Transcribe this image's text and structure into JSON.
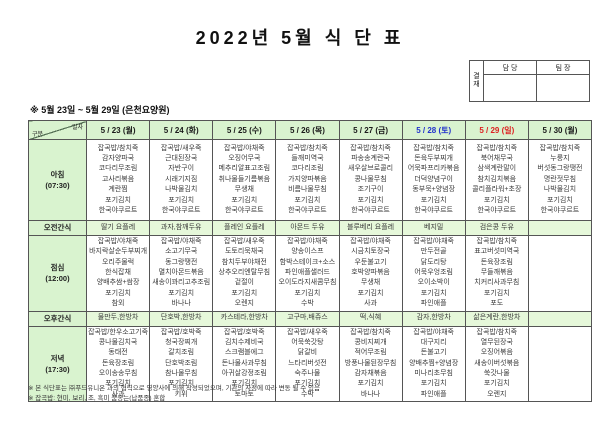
{
  "title": "2022년 5월 식 단 표",
  "subtitle": "※ 5월 23일 ~ 5월 29일 (은천요양원)",
  "approval": {
    "stamp_label": "결재",
    "columns": [
      "담 당",
      "팀 장"
    ]
  },
  "corner": {
    "top_right": "일자",
    "bottom_left": "구분"
  },
  "colors": {
    "header_bg": "#d9f3cf",
    "snack_bg": "#e6f8da",
    "weekday_text": "#1a1a1a",
    "saturday_text": "#2233cc",
    "sunday_text": "#dd2222"
  },
  "days": [
    {
      "date": "5 / 23 (월)",
      "type": "weekday"
    },
    {
      "date": "5 / 24 (화)",
      "type": "weekday"
    },
    {
      "date": "5 / 25 (수)",
      "type": "weekday"
    },
    {
      "date": "5 / 26 (목)",
      "type": "weekday"
    },
    {
      "date": "5 / 27 (금)",
      "type": "weekday"
    },
    {
      "date": "5 / 28 (토)",
      "type": "saturday"
    },
    {
      "date": "5 / 29 (일)",
      "type": "sunday"
    },
    {
      "date": "5 / 30 (월)",
      "type": "weekday"
    }
  ],
  "rows": [
    {
      "key": "breakfast",
      "label": "아침",
      "time": "(07:30)",
      "snack": false,
      "cells": [
        [
          "잡곡밥/참치죽",
          "감자양파국",
          "코다리무조림",
          "고사리볶음",
          "계란찜",
          "포기김치",
          "한국야쿠르트"
        ],
        [
          "잡곡밥/새우죽",
          "근대된장국",
          "자반구이",
          "시래기지짐",
          "나박물김치",
          "포기김치",
          "한국야쿠르트"
        ],
        [
          "잡곡밥/야채죽",
          "오징어무국",
          "메추리알표고조림",
          "취나물들기름볶음",
          "무생채",
          "포기김치",
          "한국야쿠르트"
        ],
        [
          "잡곡밥/참치죽",
          "들깨미역국",
          "코다리조림",
          "가지양파볶음",
          "비름나물무침",
          "포기김치",
          "한국야쿠르트"
        ],
        [
          "잡곡밥/참치죽",
          "파송송계란국",
          "새우살브로콜리",
          "콩나물무침",
          "조기구이",
          "포기김치",
          "한국야쿠르트"
        ],
        [
          "잡곡밥/참치죽",
          "돈육두부찌개",
          "어묵파프리카볶음",
          "더덕양념구이",
          "동부묵+양념장",
          "포기김치",
          "한국야쿠르트"
        ],
        [
          "잡곡밥/참치죽",
          "북어채무국",
          "삼색계란말이",
          "참치김치볶음",
          "콜리플라워+초장",
          "포기김치",
          "한국야쿠르트"
        ],
        [
          "잡곡밥/참치죽",
          "누룽지",
          "버섯동그랑땡전",
          "명란젓무침",
          "나박물김치",
          "포기김치",
          "한국야쿠르트"
        ]
      ]
    },
    {
      "key": "am-snack",
      "label": "오전간식",
      "time": "",
      "snack": true,
      "cells": [
        [
          "딸기 요플레"
        ],
        [
          "과자,참깨두유"
        ],
        [
          "플레인 요플레"
        ],
        [
          "아몬드 두유"
        ],
        [
          "블루베리 요플레"
        ],
        [
          "베지밀"
        ],
        [
          "검은콩 두유"
        ],
        []
      ]
    },
    {
      "key": "lunch",
      "label": "점심",
      "time": "(12:00)",
      "snack": false,
      "cells": [
        [
          "잡곡밥/야채죽",
          "바지락살순두부찌개",
          "오리주물럭",
          "한식잡채",
          "양배추쌈+쌈장",
          "포기김치",
          "참외"
        ],
        [
          "잡곡밥/야채죽",
          "소고기무국",
          "동그랑땡전",
          "멸치아몬드볶음",
          "새송이꽈리고추조림",
          "포기김치",
          "바나나"
        ],
        [
          "잡곡밥/새우죽",
          "도토리묵채국",
          "참치두부야채전",
          "상추오리엔탈무침",
          "겉절이",
          "포기김치",
          "오렌지"
        ],
        [
          "잡곡밥/야채죽",
          "양송이스프",
          "함박스테이크+소스",
          "파인애플샐러드",
          "오이도라지새콤무침",
          "포기김치",
          "수박"
        ],
        [
          "잡곡밥/야채죽",
          "시금치토장국",
          "우둔불고기",
          "호박양파볶음",
          "무생채",
          "포기김치",
          "사과"
        ],
        [
          "잡곡밥/야채죽",
          "만두전골",
          "닭도리탕",
          "어묵우엉조림",
          "오이소박이",
          "포기김치",
          "파인애플"
        ],
        [
          "잡곡밥/참치죽",
          "표고버섯미역국",
          "돈육장조림",
          "무들깨볶음",
          "치커리사과무침",
          "포기김치",
          "포도"
        ],
        []
      ]
    },
    {
      "key": "pm-snack",
      "label": "오후간식",
      "time": "",
      "snack": true,
      "cells": [
        [
          "물만두,한방차"
        ],
        [
          "단호박,한방차"
        ],
        [
          "카스테라,한방차"
        ],
        [
          "고구마,배쥬스"
        ],
        [
          "떡,식혜"
        ],
        [
          "감자,한방차"
        ],
        [
          "삶은계란,한방차"
        ],
        []
      ]
    },
    {
      "key": "dinner",
      "label": "저녁",
      "time": "(17:30)",
      "snack": false,
      "cells": [
        [
          "잡곡밥/한우소고기죽",
          "콩나물김치국",
          "동태전",
          "돈육장조림",
          "오이송송무침",
          "포기김치",
          "사과"
        ],
        [
          "잡곡밥/호박죽",
          "청국장찌개",
          "갈치조림",
          "단호박조림",
          "참나물무침",
          "포기김치",
          "키위"
        ],
        [
          "잡곡밥/호박죽",
          "김치수제비국",
          "스크램블에그",
          "돈나물사과무침",
          "아귀살강정조림",
          "포기김치",
          "토마토"
        ],
        [
          "잡곡밥/새우죽",
          "어묵쑥갓탕",
          "닭갈비",
          "느타리버섯전",
          "숙주나물",
          "포기김치",
          "수박"
        ],
        [
          "잡곡밥/참치죽",
          "콩비지찌개",
          "적어무조림",
          "방풍나물된장무침",
          "감자채볶음",
          "포기김치",
          "바나나"
        ],
        [
          "잡곡밥/야채죽",
          "대구지리",
          "돈불고기",
          "양배추찜+양념장",
          "미나리초무침",
          "포기김치",
          "파인애플"
        ],
        [
          "잡곡밥/참치죽",
          "열무된장국",
          "오징어볶음",
          "새송이버섯볶음",
          "쑥갓나물",
          "포기김치",
          "오렌지"
        ],
        []
      ]
    }
  ],
  "footnotes": [
    "※ 본 식단표는 ㈜푸드유니온 과의 협력으로 영양사에 의해 작성되었으며, 기관의 사정에 따라 변동 될 수 있음",
    "※ 잡곡밥: 현미, 보리, 조, 흑미 품종는(납품종) 혼합"
  ]
}
